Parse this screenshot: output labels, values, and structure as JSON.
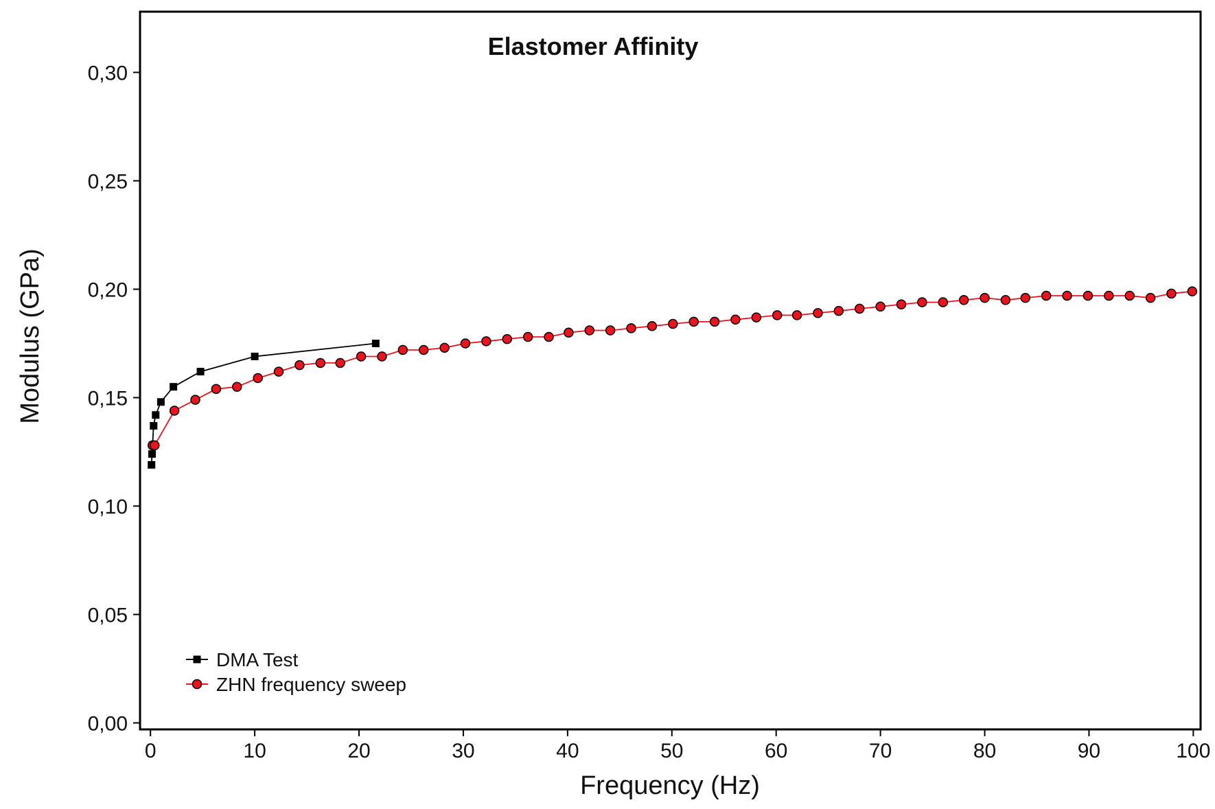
{
  "chart_data": {
    "type": "line",
    "title": "Elastomer Affinity",
    "xlabel": "Frequency (Hz)",
    "ylabel": "Modulus (GPa)",
    "xlim": [
      -1,
      100.7
    ],
    "ylim": [
      -0.003,
      0.328
    ],
    "x_ticks": [
      0,
      10,
      20,
      30,
      40,
      50,
      60,
      70,
      80,
      90,
      100
    ],
    "x_tick_labels": [
      "0",
      "10",
      "20",
      "30",
      "40",
      "50",
      "60",
      "70",
      "80",
      "90",
      "100"
    ],
    "y_ticks": [
      0,
      0.05,
      0.1,
      0.15,
      0.2,
      0.25,
      0.3
    ],
    "y_tick_labels": [
      "0,00",
      "0,05",
      "0,10",
      "0,15",
      "0,20",
      "0,25",
      "0,30"
    ],
    "grid": false,
    "legend_position": "bottom-left",
    "series": [
      {
        "name": "DMA Test",
        "color": "#000000",
        "marker": "square",
        "x": [
          0.1,
          0.15,
          0.2,
          0.3,
          0.5,
          1.0,
          2.2,
          4.8,
          10.0,
          21.6
        ],
        "y": [
          0.119,
          0.124,
          0.128,
          0.137,
          0.142,
          0.148,
          0.155,
          0.162,
          0.169,
          0.175
        ]
      },
      {
        "name": "ZHN frequency sweep",
        "color": "#e8141e",
        "marker": "circle",
        "x": [
          0.2,
          0.4,
          2.3,
          4.3,
          6.3,
          8.3,
          10.3,
          12.3,
          14.3,
          16.3,
          18.2,
          20.2,
          22.2,
          24.2,
          26.2,
          28.2,
          30.2,
          32.2,
          34.2,
          36.2,
          38.2,
          40.1,
          42.1,
          44.1,
          46.1,
          48.1,
          50.1,
          52.1,
          54.1,
          56.1,
          58.1,
          60.1,
          62.0,
          64.0,
          66.0,
          68.0,
          70.0,
          72.0,
          74.0,
          76.0,
          78.0,
          80.0,
          82.0,
          83.9,
          85.9,
          87.9,
          89.9,
          91.9,
          93.9,
          95.9,
          97.9,
          99.9
        ],
        "y": [
          0.128,
          0.128,
          0.144,
          0.149,
          0.154,
          0.155,
          0.159,
          0.162,
          0.165,
          0.166,
          0.166,
          0.169,
          0.169,
          0.172,
          0.172,
          0.173,
          0.175,
          0.176,
          0.177,
          0.178,
          0.178,
          0.18,
          0.181,
          0.181,
          0.182,
          0.183,
          0.184,
          0.185,
          0.185,
          0.186,
          0.187,
          0.188,
          0.188,
          0.189,
          0.19,
          0.191,
          0.192,
          0.193,
          0.194,
          0.194,
          0.195,
          0.196,
          0.195,
          0.196,
          0.197,
          0.197,
          0.197,
          0.197,
          0.197,
          0.196,
          0.198,
          0.199
        ]
      }
    ]
  }
}
